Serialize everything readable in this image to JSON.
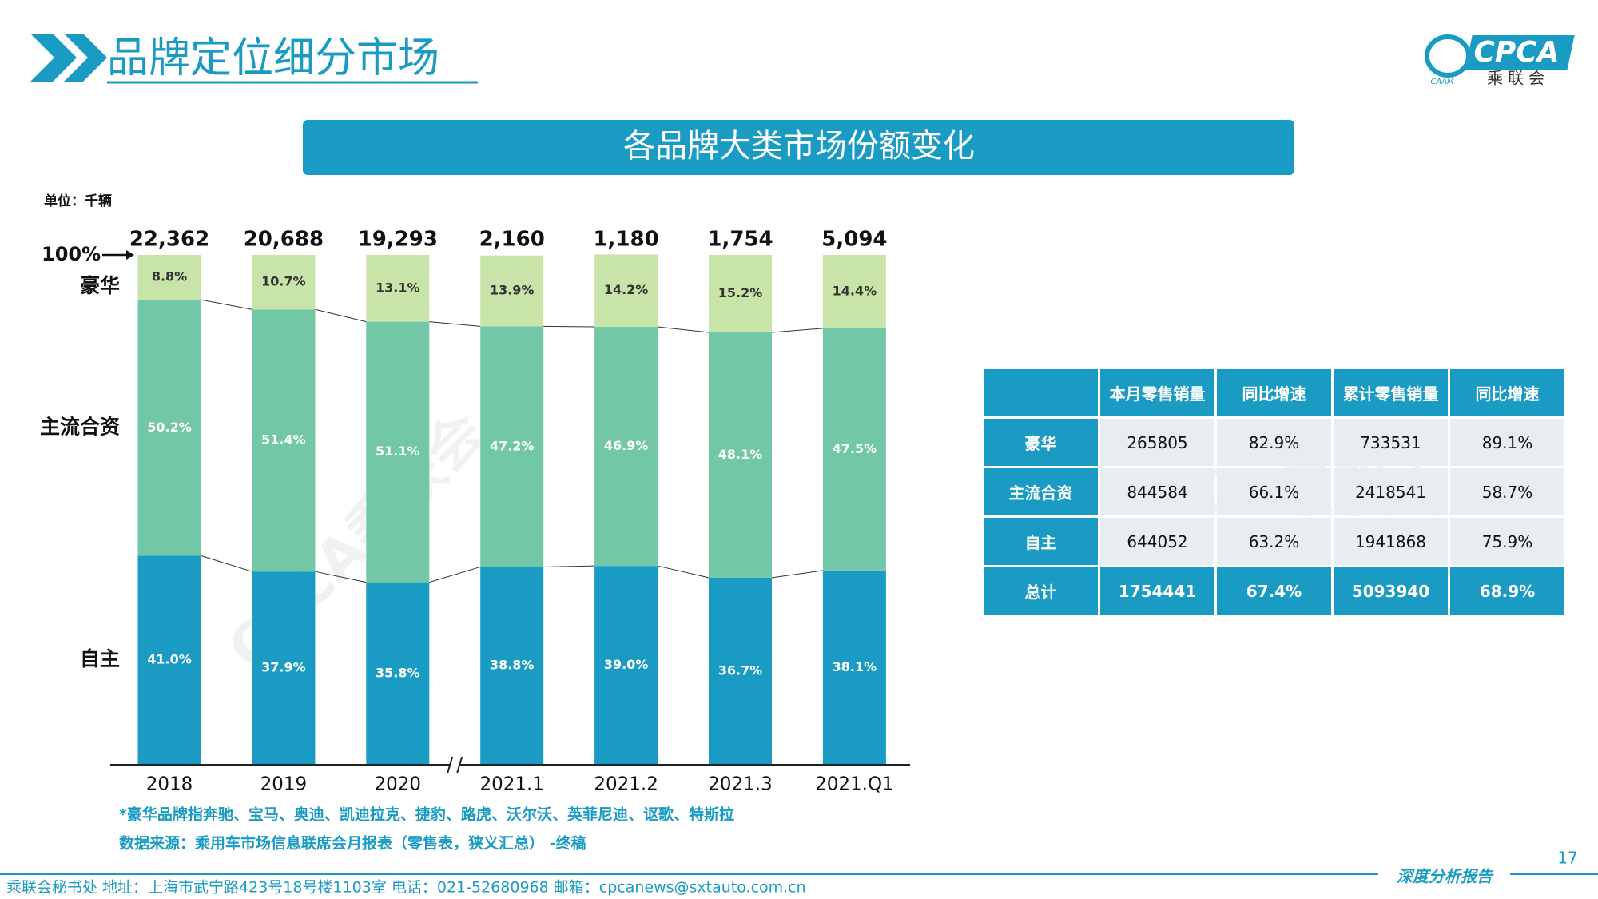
{
  "header": {
    "title": "品牌定位细分市场",
    "logo_text": "CPCA",
    "logo_subtext": "乘联会",
    "logo_mark": "CAAM"
  },
  "chart_data": {
    "type": "bar",
    "stacked": true,
    "title": "各品牌大类市场份额变化",
    "unit": "单位：千辆",
    "categories": [
      "2018",
      "2019",
      "2020",
      "2021.1",
      "2021.2",
      "2021.3",
      "2021.Q1"
    ],
    "totals": {
      "values": [
        22362,
        20688,
        19293,
        2160,
        1180,
        1754,
        5094
      ],
      "value_labels": [
        "22,362",
        "20,688",
        "19,293",
        "2,160",
        "1,180",
        "1,754",
        "5,094"
      ]
    },
    "series": [
      {
        "name": "自主",
        "color": "#1a9bc3",
        "label_color": "#ffffff",
        "values": [
          41.0,
          37.9,
          35.8,
          38.8,
          39.0,
          36.7,
          38.1
        ],
        "value_labels": [
          "41.0%",
          "37.9%",
          "35.8%",
          "38.8%",
          "39.0%",
          "36.7%",
          "38.1%"
        ]
      },
      {
        "name": "主流合资",
        "color": "#72c7a6",
        "label_color": "#ffffff",
        "values": [
          50.2,
          51.4,
          51.1,
          47.2,
          46.9,
          48.1,
          47.5
        ],
        "value_labels": [
          "50.2%",
          "51.4%",
          "51.1%",
          "47.2%",
          "46.9%",
          "48.1%",
          "47.5%"
        ]
      },
      {
        "name": "豪华",
        "color": "#c9e4a8",
        "label_color": "#333333",
        "values": [
          8.8,
          10.7,
          13.1,
          13.9,
          14.2,
          15.2,
          14.4
        ],
        "value_labels": [
          "8.8%",
          "10.7%",
          "13.1%",
          "13.9%",
          "14.2%",
          "15.2%",
          "14.4%"
        ]
      }
    ],
    "ylim": [
      0,
      100
    ],
    "yticks": [
      {
        "value": 100,
        "label": "100%"
      }
    ],
    "notes": [
      "*豪华品牌指奔驰、宝马、奥迪、凯迪拉克、捷豹、路虎、沃尔沃、英菲尼迪、讴歌、特斯拉",
      "数据来源：乘用车市场信息联席会月报表（零售表，狭义汇总） -终稿"
    ]
  },
  "table": {
    "columns": [
      "本月零售销量",
      "同比增速",
      "累计零售销量",
      "同比增速"
    ],
    "rows": [
      [
        "豪华",
        265805,
        "82.9%",
        733531,
        "89.1%"
      ],
      [
        "主流合资",
        844584,
        "66.1%",
        2418541,
        "58.7%"
      ],
      [
        "自主",
        644052,
        "63.2%",
        1941868,
        "75.9%"
      ],
      [
        "总计",
        1754441,
        "67.4%",
        5093940,
        "68.9%"
      ]
    ]
  },
  "watermark": "CPCA乘联会",
  "page_number": 17,
  "footer": {
    "contact": "乘联会秘书处  地址：上海市武宁路423号18号楼1103室  电话：021-52680968  邮箱：cpcanews@sxtauto.com.cn",
    "tag": "深度分析报告"
  }
}
